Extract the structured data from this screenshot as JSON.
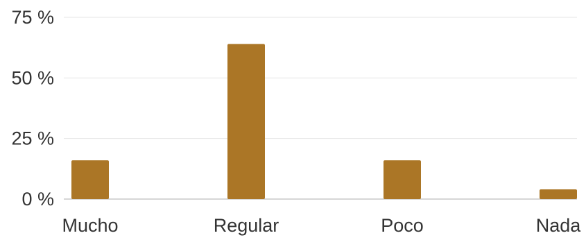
{
  "chart_data": {
    "type": "bar",
    "title": "",
    "xlabel": "",
    "ylabel": "",
    "categories": [
      "Mucho",
      "Regular",
      "Poco",
      "Nada"
    ],
    "values": [
      16,
      64,
      16,
      4
    ],
    "ylim": [
      0,
      75
    ],
    "yticks": [
      0,
      25,
      50,
      75
    ],
    "ytick_labels": [
      "0 %",
      "25 %",
      "50 %",
      "75 %"
    ],
    "grid": true,
    "legend": "none",
    "colors": {
      "bar": "#ab7626",
      "grid": "#e4e4e4",
      "axis": "#c8c8c8",
      "text": "#333333"
    }
  }
}
